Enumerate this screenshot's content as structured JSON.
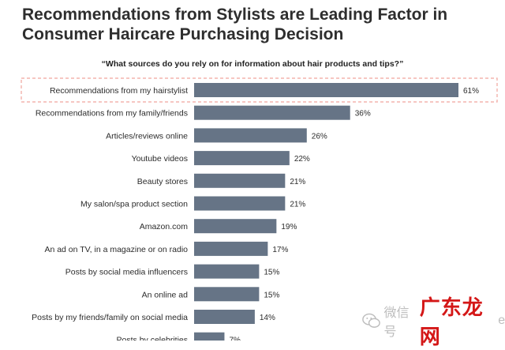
{
  "header": {
    "title": "Recommendations from Stylists are Leading Factor in Consumer Haircare Purchasing Decision",
    "subtitle": "“What sources do you rely on for information about hair products and tips?”"
  },
  "colors": {
    "bar": "#667486",
    "highlight_border": "#f0a59d",
    "watermark_red": "#d41717"
  },
  "watermark": {
    "icon": "wechat-icon",
    "prefix": "微信号",
    "brand": "广东龙网",
    "suffix": "eb"
  },
  "chart_data": {
    "type": "bar",
    "orientation": "horizontal",
    "title": "“What sources do you rely on for information about hair products and tips?”",
    "categories": [
      "Recommendations from my hairstylist",
      "Recommendations from my family/friends",
      "Articles/reviews online",
      "Youtube videos",
      "Beauty stores",
      "My salon/spa product section",
      "Amazon.com",
      "An ad on TV, in a magazine or on radio",
      "Posts by social media influencers",
      "An online ad",
      "Posts by my friends/family on social media",
      "Posts by celebrities"
    ],
    "values": [
      61,
      36,
      26,
      22,
      21,
      21,
      19,
      17,
      15,
      15,
      14,
      7
    ],
    "value_labels": [
      "61%",
      "36%",
      "26%",
      "22%",
      "21%",
      "21%",
      "19%",
      "17%",
      "15%",
      "15%",
      "14%",
      "7%"
    ],
    "xlim": [
      0,
      61
    ],
    "highlighted_category": "Recommendations from my hairstylist",
    "grid": false,
    "legend": "none"
  }
}
